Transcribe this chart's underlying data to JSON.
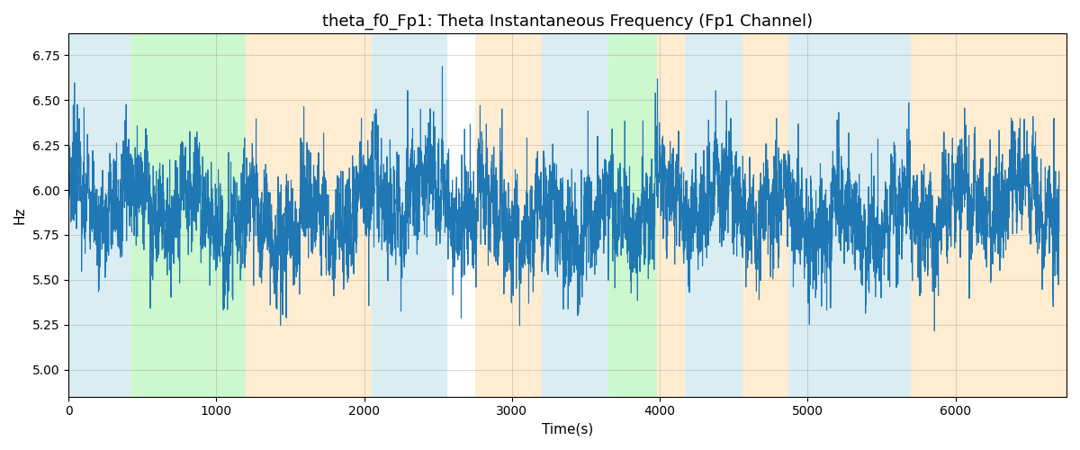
{
  "title": "theta_f0_Fp1: Theta Instantaneous Frequency (Fp1 Channel)",
  "xlabel": "Time(s)",
  "ylabel": "Hz",
  "ylim": [
    4.85,
    6.87
  ],
  "xlim": [
    0,
    6750
  ],
  "line_color": "#1f77b4",
  "line_width": 0.8,
  "background_bands": [
    {
      "xmin": 0,
      "xmax": 420,
      "color": "#add8e6",
      "alpha": 0.45
    },
    {
      "xmin": 420,
      "xmax": 1200,
      "color": "#90ee90",
      "alpha": 0.45
    },
    {
      "xmin": 1200,
      "xmax": 2050,
      "color": "#ffd59a",
      "alpha": 0.45
    },
    {
      "xmin": 2050,
      "xmax": 2560,
      "color": "#add8e6",
      "alpha": 0.45
    },
    {
      "xmin": 2750,
      "xmax": 3200,
      "color": "#ffd59a",
      "alpha": 0.45
    },
    {
      "xmin": 3200,
      "xmax": 3650,
      "color": "#add8e6",
      "alpha": 0.45
    },
    {
      "xmin": 3650,
      "xmax": 3980,
      "color": "#90ee90",
      "alpha": 0.45
    },
    {
      "xmin": 3980,
      "xmax": 4170,
      "color": "#ffd59a",
      "alpha": 0.45
    },
    {
      "xmin": 4170,
      "xmax": 4560,
      "color": "#add8e6",
      "alpha": 0.45
    },
    {
      "xmin": 4560,
      "xmax": 4870,
      "color": "#ffd59a",
      "alpha": 0.45
    },
    {
      "xmin": 4870,
      "xmax": 5700,
      "color": "#add8e6",
      "alpha": 0.45
    },
    {
      "xmin": 5700,
      "xmax": 6750,
      "color": "#ffd59a",
      "alpha": 0.45
    }
  ],
  "yticks": [
    5.0,
    5.25,
    5.5,
    5.75,
    6.0,
    6.25,
    6.5,
    6.75
  ],
  "xticks": [
    0,
    1000,
    2000,
    3000,
    4000,
    5000,
    6000
  ],
  "figsize": [
    12.0,
    5.0
  ],
  "dpi": 100
}
